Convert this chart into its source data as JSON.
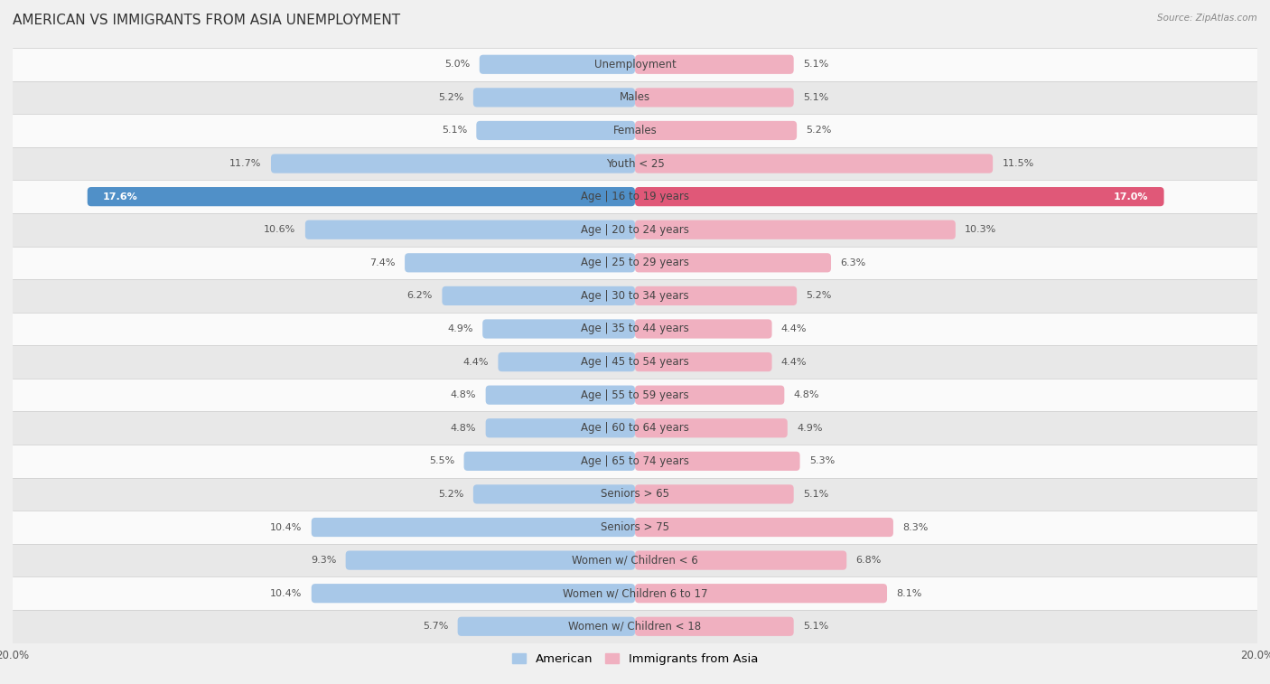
{
  "title": "AMERICAN VS IMMIGRANTS FROM ASIA UNEMPLOYMENT",
  "source": "Source: ZipAtlas.com",
  "categories": [
    "Unemployment",
    "Males",
    "Females",
    "Youth < 25",
    "Age | 16 to 19 years",
    "Age | 20 to 24 years",
    "Age | 25 to 29 years",
    "Age | 30 to 34 years",
    "Age | 35 to 44 years",
    "Age | 45 to 54 years",
    "Age | 55 to 59 years",
    "Age | 60 to 64 years",
    "Age | 65 to 74 years",
    "Seniors > 65",
    "Seniors > 75",
    "Women w/ Children < 6",
    "Women w/ Children 6 to 17",
    "Women w/ Children < 18"
  ],
  "american_values": [
    5.0,
    5.2,
    5.1,
    11.7,
    17.6,
    10.6,
    7.4,
    6.2,
    4.9,
    4.4,
    4.8,
    4.8,
    5.5,
    5.2,
    10.4,
    9.3,
    10.4,
    5.7
  ],
  "immigrant_values": [
    5.1,
    5.1,
    5.2,
    11.5,
    17.0,
    10.3,
    6.3,
    5.2,
    4.4,
    4.4,
    4.8,
    4.9,
    5.3,
    5.1,
    8.3,
    6.8,
    8.1,
    5.1
  ],
  "american_color": "#a8c8e8",
  "immigrant_color": "#f0b0c0",
  "american_highlight_color": "#5090c8",
  "immigrant_highlight_color": "#e05878",
  "highlight_rows": [
    4
  ],
  "axis_limit": 20.0,
  "bar_height": 0.58,
  "background_color": "#f0f0f0",
  "row_light_color": "#fafafa",
  "row_dark_color": "#e8e8e8",
  "title_fontsize": 11,
  "label_fontsize": 8.5,
  "value_fontsize": 8,
  "legend_fontsize": 9.5
}
